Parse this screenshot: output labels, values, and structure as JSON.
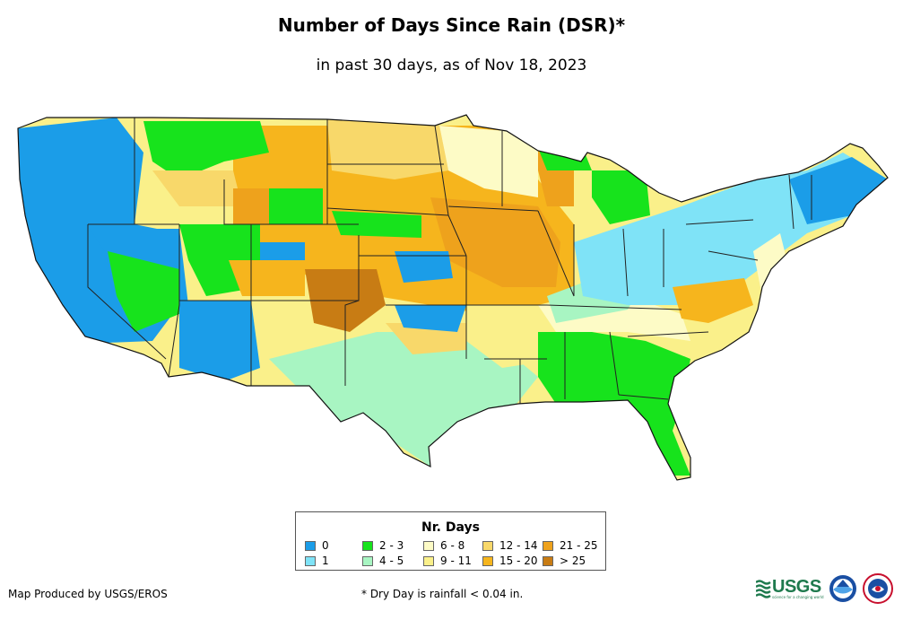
{
  "title": "Number of Days Since Rain (DSR)*",
  "subtitle": "in past 30 days, as of Nov 18, 2023",
  "legend": {
    "title": "Nr. Days",
    "items": [
      {
        "label": "0",
        "color": "#1b9de8"
      },
      {
        "label": "1",
        "color": "#7fe3f7"
      },
      {
        "label": "2 - 3",
        "color": "#17e31c"
      },
      {
        "label": "4 - 5",
        "color": "#a8f5c2"
      },
      {
        "label": "6 - 8",
        "color": "#fdfbc6"
      },
      {
        "label": "9 - 11",
        "color": "#faf08a"
      },
      {
        "label": "12 - 14",
        "color": "#f8d86a"
      },
      {
        "label": "15 - 20",
        "color": "#f6b51d"
      },
      {
        "label": "21 - 25",
        "color": "#eea21c"
      },
      {
        "label": "> 25",
        "color": "#c87c14"
      }
    ]
  },
  "footer": {
    "credit": "Map Produced by USGS/EROS",
    "note": "* Dry Day is rainfall < 0.04 in."
  },
  "logos": {
    "usgs_text": "USGS",
    "usgs_tagline": "science for a changing world"
  }
}
